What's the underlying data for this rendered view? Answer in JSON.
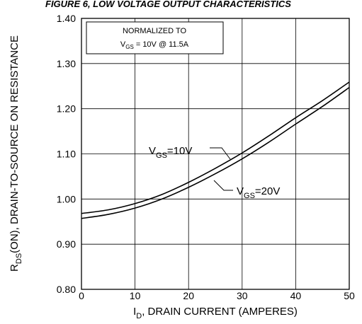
{
  "chart_data": {
    "type": "line",
    "title": "FIGURE 6, LOW VOLTAGE OUTPUT CHARACTERISTICS",
    "xlabel": {
      "main": "I",
      "sub": "D",
      "rest": ", DRAIN CURRENT (AMPERES)"
    },
    "ylabel": {
      "main": "R",
      "sub": "DS",
      "rest": "(ON), DRAIN-TO-SOURCE ON RESISTANCE"
    },
    "xlim": [
      0,
      50
    ],
    "ylim": [
      0.8,
      1.4
    ],
    "x_ticks": [
      "0",
      "10",
      "20",
      "30",
      "40",
      "50"
    ],
    "y_ticks": [
      "0.80",
      "0.90",
      "1.00",
      "1.10",
      "1.20",
      "1.30",
      "1.40"
    ],
    "grid": true,
    "annotation": {
      "line1": "NORMALIZED TO",
      "line2_main": "V",
      "line2_sub": "GS",
      "line2_rest": " = 10V  @  11.5A"
    },
    "series": [
      {
        "name": "VGS=10V",
        "label_main": "V",
        "label_sub": "GS",
        "label_rest": "=10V",
        "x": [
          0,
          5,
          10,
          15,
          20,
          25,
          30,
          35,
          40,
          45,
          50
        ],
        "y": [
          0.968,
          0.976,
          0.99,
          1.01,
          1.037,
          1.068,
          1.102,
          1.14,
          1.18,
          1.218,
          1.259
        ]
      },
      {
        "name": "VGS=20V",
        "label_main": "V",
        "label_sub": "GS",
        "label_rest": "=20V",
        "x": [
          0,
          5,
          10,
          15,
          20,
          25,
          30,
          35,
          40,
          45,
          50
        ],
        "y": [
          0.957,
          0.966,
          0.98,
          1.0,
          1.026,
          1.056,
          1.089,
          1.126,
          1.166,
          1.205,
          1.247
        ]
      }
    ]
  }
}
